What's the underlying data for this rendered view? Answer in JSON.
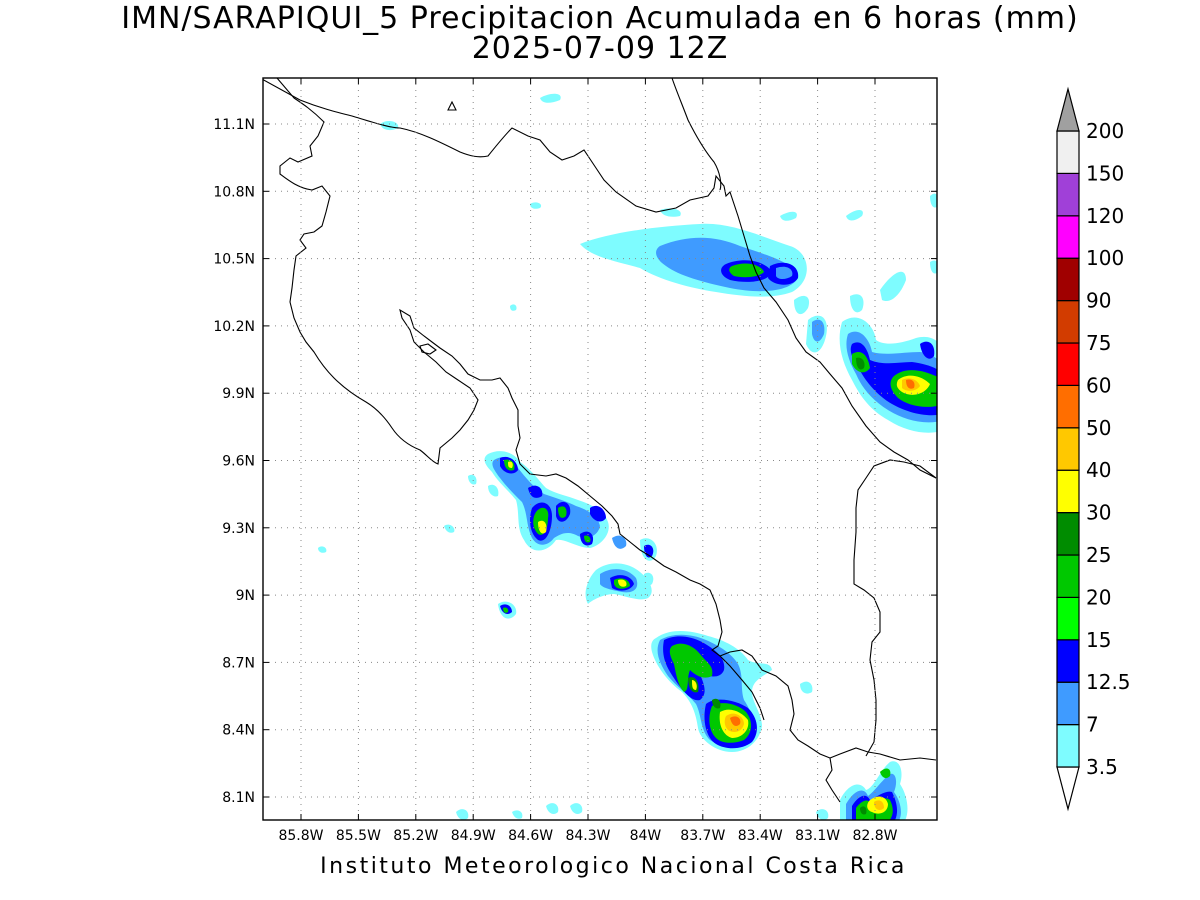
{
  "title": {
    "line1": "IMN/SARAPIQUI_5 Precipitacion Acumulada en 6 horas (mm)",
    "line2": "2025-07-09 12Z"
  },
  "footer": "Instituto Meteorologico Nacional Costa Rica",
  "map": {
    "lat_range": [
      8.0,
      11.3
    ],
    "lon_range": [
      -86.0,
      -82.6
    ],
    "lat_ticks": [
      "11.1N",
      "10.8N",
      "10.5N",
      "10.2N",
      "9.9N",
      "9.6N",
      "9.3N",
      "9N",
      "8.7N",
      "8.4N",
      "8.1N"
    ],
    "lon_ticks": [
      "85.8W",
      "85.5W",
      "85.2W",
      "84.9W",
      "84.6W",
      "84.3W",
      "84W",
      "83.7W",
      "83.4W",
      "83.1W",
      "82.8W"
    ],
    "grid": "dotted"
  },
  "colorbar": {
    "unit": "mm",
    "levels": [
      {
        "label": "3.5",
        "color": "#7efcff"
      },
      {
        "label": "7",
        "color": "#3f9bff"
      },
      {
        "label": "12.5",
        "color": "#0000ff"
      },
      {
        "label": "15",
        "color": "#00ff00"
      },
      {
        "label": "20",
        "color": "#00c800"
      },
      {
        "label": "25",
        "color": "#008c00"
      },
      {
        "label": "30",
        "color": "#ffff00"
      },
      {
        "label": "40",
        "color": "#ffc800"
      },
      {
        "label": "50",
        "color": "#ff6e00"
      },
      {
        "label": "60",
        "color": "#ff0000"
      },
      {
        "label": "75",
        "color": "#d23c00"
      },
      {
        "label": "90",
        "color": "#a00000"
      },
      {
        "label": "100",
        "color": "#ff00ff"
      },
      {
        "label": "120",
        "color": "#a040d8"
      },
      {
        "label": "150",
        "color": "#f0f0f0"
      },
      {
        "label": "200",
        "color": "#a0a0a0"
      }
    ]
  },
  "precip_cells": [
    {
      "lon": -84.15,
      "lat": 10.54,
      "mm": 3.5
    },
    {
      "lon": -83.85,
      "lat": 10.47,
      "mm": 7
    },
    {
      "lon": -83.52,
      "lat": 10.45,
      "mm": 20
    },
    {
      "lon": -83.32,
      "lat": 10.46,
      "mm": 12.5
    },
    {
      "lon": -82.87,
      "lat": 10.02,
      "mm": 25
    },
    {
      "lon": -82.63,
      "lat": 9.94,
      "mm": 50
    },
    {
      "lon": -84.71,
      "lat": 9.58,
      "mm": 30
    },
    {
      "lon": -84.57,
      "lat": 9.33,
      "mm": 30
    },
    {
      "lon": -84.48,
      "lat": 9.39,
      "mm": 20
    },
    {
      "lon": -84.29,
      "lat": 9.37,
      "mm": 12.5
    },
    {
      "lon": -84.1,
      "lat": 9.05,
      "mm": 30
    },
    {
      "lon": -84.74,
      "lat": 8.92,
      "mm": 15
    },
    {
      "lon": -83.73,
      "lat": 8.72,
      "mm": 25
    },
    {
      "lon": -83.72,
      "lat": 8.6,
      "mm": 30
    },
    {
      "lon": -83.56,
      "lat": 8.45,
      "mm": 50
    },
    {
      "lon": -82.78,
      "lat": 8.08,
      "mm": 40
    }
  ]
}
